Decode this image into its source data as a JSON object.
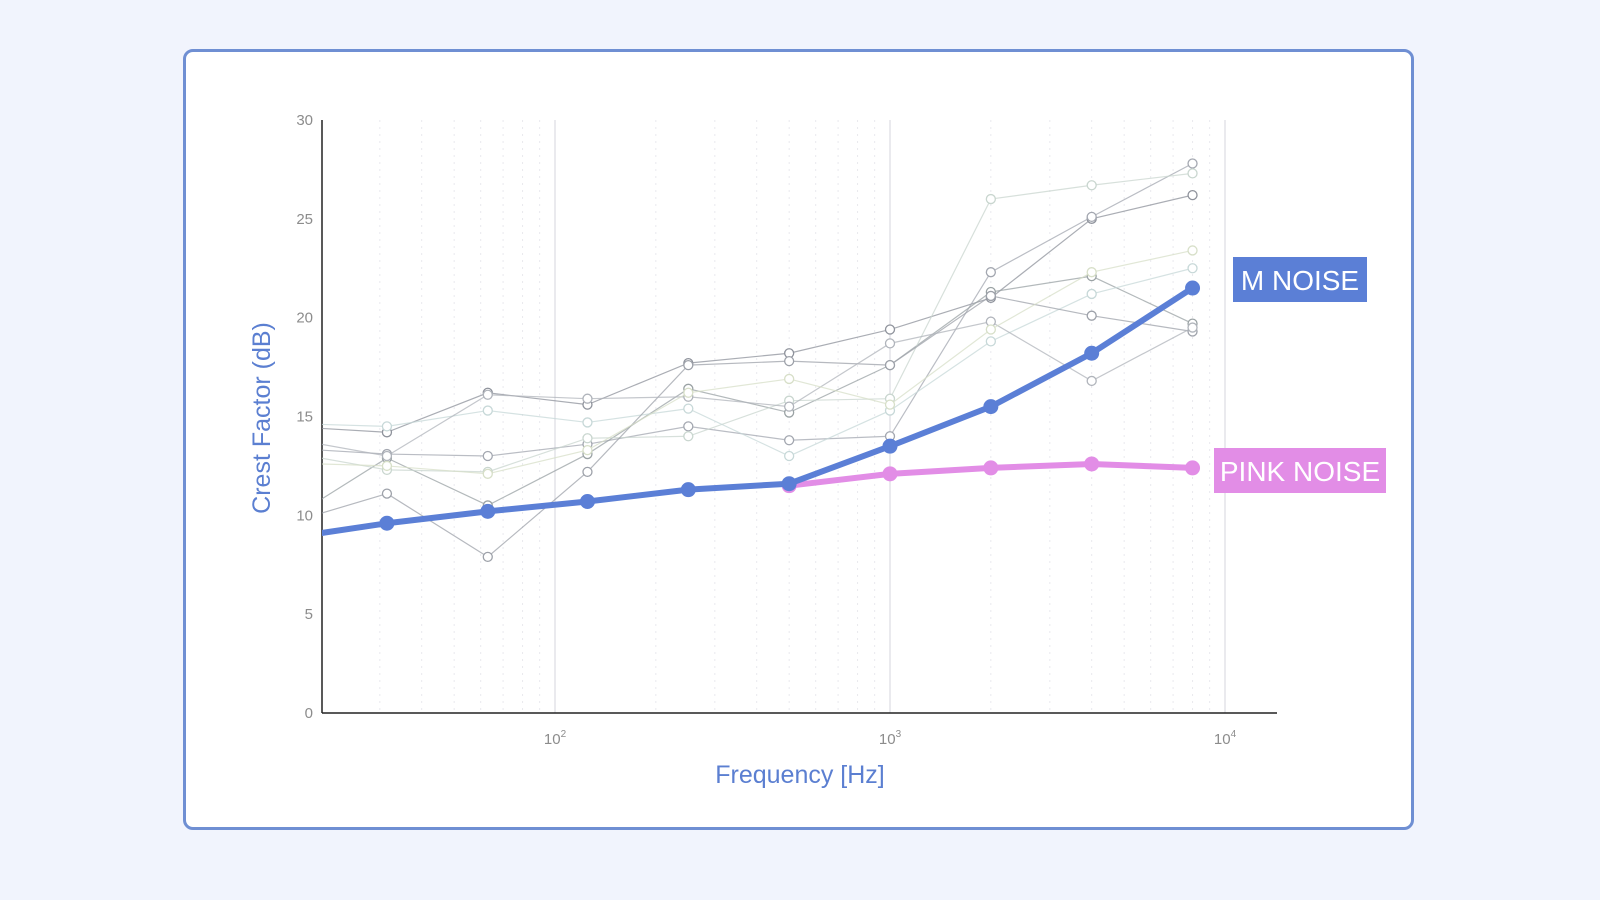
{
  "chart_data": {
    "type": "line",
    "title": "",
    "xlabel": "Frequency [Hz]",
    "ylabel": "Crest Factor (dB)",
    "x_scale": "log",
    "xlim": [
      20,
      16000
    ],
    "ylim": [
      0,
      30
    ],
    "y_ticks": [
      0,
      5,
      10,
      15,
      20,
      25,
      30
    ],
    "x_ticks": [
      {
        "value": 100,
        "label": "10",
        "exp": "2"
      },
      {
        "value": 1000,
        "label": "10",
        "exp": "3"
      },
      {
        "value": 10000,
        "label": "10",
        "exp": "4"
      }
    ],
    "grid": {
      "vertical_major": true,
      "vertical_minor": true,
      "horizontal": false
    },
    "legend_placement": "right",
    "colors": {
      "m_noise": "#5b7fd6",
      "pink_noise": "#e28de6",
      "background_series": "#9a9fa8",
      "card_border": "#6f8fd3",
      "page_bg": "#f1f4fd"
    },
    "series": [
      {
        "name": "M NOISE",
        "color": "#5b7fd6",
        "x": [
          20,
          31.5,
          63,
          125,
          250,
          500,
          1000,
          2000,
          4000,
          8000
        ],
        "values": [
          9.1,
          9.6,
          10.2,
          10.7,
          11.3,
          11.6,
          13.5,
          15.5,
          18.2,
          21.5
        ]
      },
      {
        "name": "PINK NOISE",
        "color": "#e28de6",
        "x": [
          500,
          1000,
          2000,
          4000,
          8000
        ],
        "values": [
          11.5,
          12.1,
          12.4,
          12.6,
          12.4
        ]
      }
    ],
    "background_series": [
      {
        "x": [
          20,
          31.5,
          63,
          125,
          250,
          500,
          1000,
          2000,
          4000,
          8000
        ],
        "values": [
          14.4,
          14.2,
          16.2,
          15.6,
          17.7,
          18.2,
          19.4,
          21.0,
          25.0,
          26.2
        ]
      },
      {
        "x": [
          20,
          31.5,
          63,
          125,
          250,
          500,
          1000,
          2000,
          4000,
          8000
        ],
        "values": [
          13.3,
          13.1,
          13.0,
          13.6,
          14.5,
          13.8,
          14.0,
          22.3,
          25.1,
          27.8
        ]
      },
      {
        "x": [
          20,
          31.5,
          63,
          125,
          250,
          500,
          1000,
          2000,
          4000,
          8000
        ],
        "values": [
          10.8,
          12.9,
          10.5,
          13.1,
          16.4,
          15.2,
          17.6,
          21.3,
          22.1,
          19.7
        ]
      },
      {
        "x": [
          20,
          31.5,
          63,
          125,
          250,
          500,
          1000,
          2000,
          4000,
          8000
        ],
        "values": [
          12.9,
          12.3,
          12.2,
          13.9,
          14.0,
          15.8,
          15.9,
          26.0,
          26.7,
          27.3
        ]
      },
      {
        "x": [
          20,
          31.5,
          63,
          125,
          250,
          500,
          1000,
          2000,
          4000,
          8000
        ],
        "values": [
          14.6,
          14.5,
          15.3,
          14.7,
          15.4,
          13.0,
          15.3,
          18.8,
          21.2,
          22.5
        ]
      },
      {
        "x": [
          20,
          31.5,
          63,
          125,
          250,
          500,
          1000,
          2000,
          4000,
          8000
        ],
        "values": [
          10.1,
          11.1,
          7.9,
          12.2,
          17.6,
          17.8,
          17.6,
          21.1,
          20.1,
          19.3
        ]
      },
      {
        "x": [
          20,
          31.5,
          63,
          125,
          250,
          500,
          1000,
          2000,
          4000,
          8000
        ],
        "values": [
          13.6,
          13.0,
          16.1,
          15.9,
          16.0,
          15.5,
          18.7,
          19.8,
          16.8,
          19.5
        ]
      },
      {
        "x": [
          20,
          31.5,
          63,
          125,
          250,
          500,
          1000,
          2000,
          4000,
          8000
        ],
        "values": [
          12.6,
          12.5,
          12.1,
          13.3,
          16.2,
          16.9,
          15.6,
          19.4,
          22.3,
          23.4
        ]
      }
    ]
  }
}
